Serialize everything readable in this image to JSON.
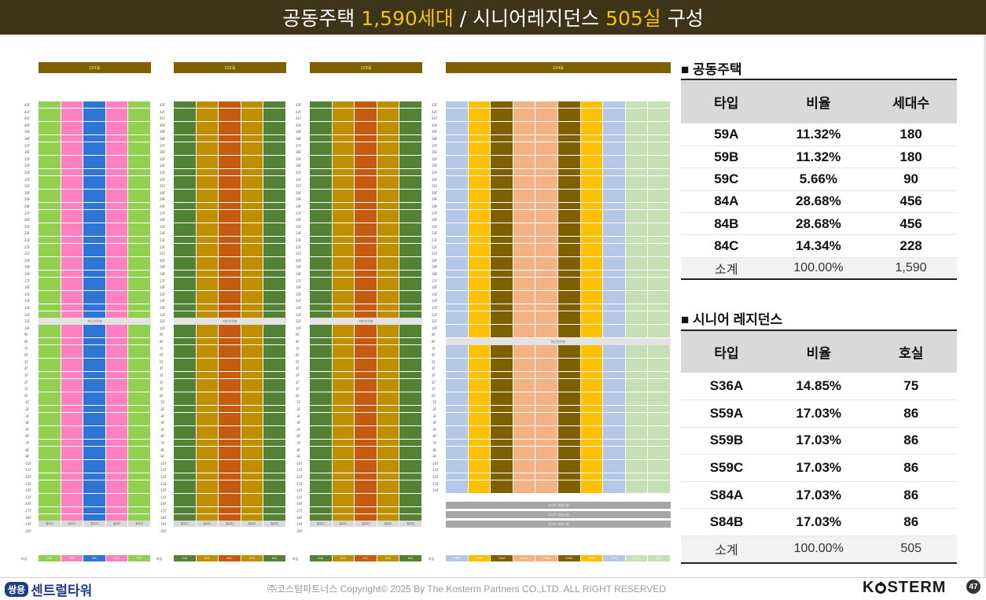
{
  "slide_title": {
    "p1": "공동주택 ",
    "h1": "1,590세대",
    "p2": " / 시니어레지던스 ",
    "h2": "505실",
    "p3": " 구성"
  },
  "towers": [
    {
      "header": "101동",
      "gap_label": "피난안전층",
      "colors": [
        "#92d050",
        "#ff7fbf",
        "#2e75d6",
        "#ff7fbf",
        "#92d050"
      ],
      "base_label": "필로티",
      "type_labels": [
        "59A",
        "59B",
        "59C",
        "59B",
        "59A"
      ]
    },
    {
      "header": "102동",
      "gap_label": "피난안전층",
      "colors": [
        "#548235",
        "#bf8f00",
        "#c55a11",
        "#bf8f00",
        "#548235"
      ],
      "base_label": "필로티",
      "type_labels": [
        "84A",
        "84B",
        "84C",
        "84B",
        "84A"
      ]
    },
    {
      "header": "103동",
      "gap_label": "피난안전층",
      "colors": [
        "#548235",
        "#bf8f00",
        "#c55a11",
        "#bf8f00",
        "#548235"
      ],
      "base_label": "필로티",
      "type_labels": [
        "84A",
        "84B",
        "84C",
        "84B",
        "84A"
      ]
    },
    {
      "header": "104동",
      "gap_label": "피난안전층",
      "colors": [
        "#b4c7e7",
        "#ffc000",
        "#7f6000",
        "#f4b183",
        "#f4b183",
        "#7f6000",
        "#ffc000",
        "#b4c7e7",
        "#c5e0b4",
        "#c5e0b4"
      ],
      "base_label": "",
      "type_labels": [
        "S59A",
        "S59B",
        "S36A",
        "S84A",
        "S84A",
        "S36A",
        "S59B",
        "S59A",
        "S59C",
        "S59C"
      ],
      "gray_labels": [
        "시니어 지원시설",
        "시니어 지원시설",
        "시니어 지원시설"
      ]
    }
  ],
  "apartment": {
    "section_title": "■ 공동주택",
    "headers": [
      "타입",
      "비율",
      "세대수"
    ],
    "rows": [
      [
        "59A",
        "11.32%",
        "180"
      ],
      [
        "59B",
        "11.32%",
        "180"
      ],
      [
        "59C",
        "5.66%",
        "90"
      ],
      [
        "84A",
        "28.68%",
        "456"
      ],
      [
        "84B",
        "28.68%",
        "456"
      ],
      [
        "84C",
        "14.34%",
        "228"
      ]
    ],
    "total": [
      "소계",
      "100.00%",
      "1,590"
    ]
  },
  "senior": {
    "section_title": "■ 시니어 레지던스",
    "headers": [
      "타입",
      "비율",
      "호실"
    ],
    "rows": [
      [
        "S36A",
        "14.85%",
        "75"
      ],
      [
        "S59A",
        "17.03%",
        "86"
      ],
      [
        "S59B",
        "17.03%",
        "86"
      ],
      [
        "S59C",
        "17.03%",
        "86"
      ],
      [
        "S84A",
        "17.03%",
        "86"
      ],
      [
        "S84B",
        "17.03%",
        "86"
      ]
    ],
    "total": [
      "소계",
      "100.00%",
      "505"
    ]
  },
  "footer": {
    "logo_badge": "쌍용",
    "logo_text": "센트럴타워",
    "copyright": "㈜코스텀파트너스 Copyright© 2025 By The Kosterm Partners CO.,LTD. ALL RIGHT RESERVED",
    "brand_k": "K",
    "brand_rest": "STERM",
    "page_number": "47"
  }
}
